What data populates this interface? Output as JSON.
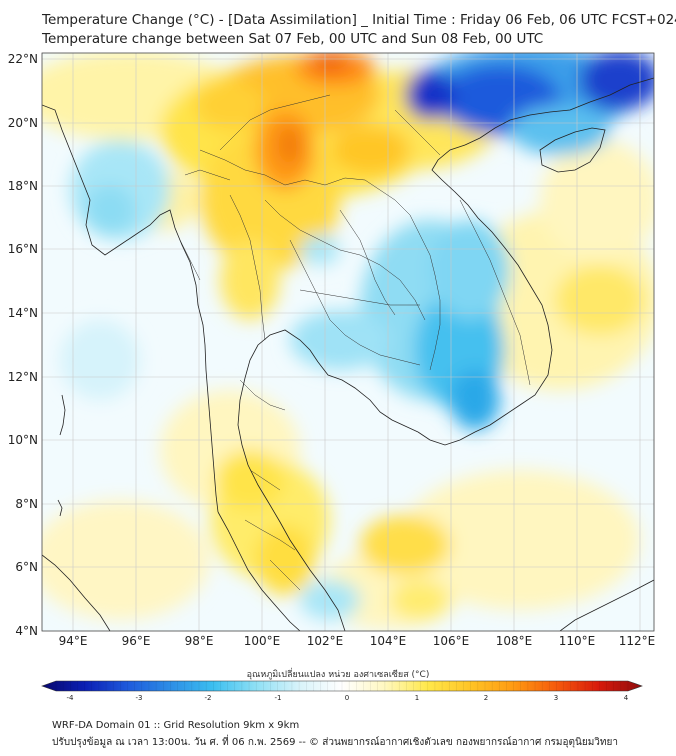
{
  "title": {
    "line1": "Temperature Change (°C) - [Data Assimilation] _ Initial Time : Friday 06 Feb, 06 UTC FCST+024",
    "line2": "Temperature change between Sat 07 Feb, 00 UTC and Sun 08 Feb, 00 UTC"
  },
  "map": {
    "lon_range": [
      93,
      112.5
    ],
    "lat_range": [
      4,
      22.2
    ],
    "lat_labels": [
      "22°N",
      "20°N",
      "18°N",
      "16°N",
      "14°N",
      "12°N",
      "10°N",
      "8°N",
      "6°N",
      "4°N"
    ],
    "lon_labels": [
      "94°E",
      "96°E",
      "98°E",
      "100°E",
      "102°E",
      "104°E",
      "106°E",
      "108°E",
      "110°E",
      "112°E"
    ]
  },
  "colorbar": {
    "title": "อุณหภูมิเปลี่ยนแปลง หน่วย องศาเซลเซียส (°C)",
    "ticks": [
      "-4",
      "-3",
      "-2",
      "-1",
      "0",
      "1",
      "2",
      "3",
      "4"
    ],
    "colors": [
      "#08086e",
      "#0b1fb4",
      "#1e5adc",
      "#2d8ee6",
      "#3cbff0",
      "#8fe0f5",
      "#d8f3fa",
      "#ffffff",
      "#fff8c0",
      "#ffe84a",
      "#ffc425",
      "#ff9a12",
      "#f55a0c",
      "#d7190b",
      "#8f0d0d"
    ]
  },
  "footer": {
    "line1": "WRF-DA Domain 01 :: Grid Resolution 9km x 9km",
    "line2": "ปรับปรุงข้อมูล ณ เวลา 13:00น. วัน ศ. ที่ 06 ก.พ. 2569 -- © ส่วนพยากรณ์อากาศเชิงตัวเลข กองพยากรณ์อากาศ กรมอุตุนิยมวิทยา"
  }
}
